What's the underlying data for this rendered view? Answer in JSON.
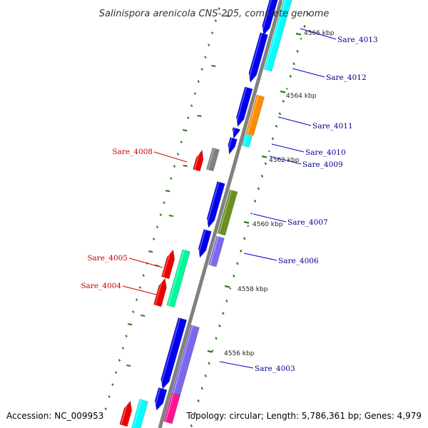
{
  "title": "Salinispora arenicola CNS-205, complete genome",
  "accession": "Accession: NC_009953",
  "topology": "Topology: circular; Length: 5,786,361 bp; Genes: 4,979",
  "colors": {
    "backbone": "#808080",
    "tick": "#2e7d1f",
    "label_plus": "#00008b",
    "label_minus": "#cc0000",
    "leader_plus": "#0000cc",
    "leader_minus": "#cc0000"
  },
  "kbp_labels": [
    "4566 kbp",
    "4564 kbp",
    "4562 kbp",
    "4560 kbp",
    "4558 kbp",
    "4556 kbp"
  ],
  "gene_labels": [
    {
      "text": "Sare_4013",
      "strand": "plus"
    },
    {
      "text": "Sare_4012",
      "strand": "plus"
    },
    {
      "text": "Sare_4011",
      "strand": "plus"
    },
    {
      "text": "Sare_4010",
      "strand": "plus"
    },
    {
      "text": "Sare_4009",
      "strand": "plus"
    },
    {
      "text": "Sare_4008",
      "strand": "minus"
    },
    {
      "text": "Sare_4007",
      "strand": "plus"
    },
    {
      "text": "Sare_4006",
      "strand": "plus"
    },
    {
      "text": "Sare_4005",
      "strand": "minus"
    },
    {
      "text": "Sare_4004",
      "strand": "minus"
    },
    {
      "text": "Sare_4003",
      "strand": "plus"
    }
  ],
  "features": [
    {
      "name": "plus-cds",
      "color": "#0000ee"
    },
    {
      "name": "minus-cds",
      "color": "#ee0000"
    },
    {
      "name": "cog-cyan",
      "color": "#00ffff"
    },
    {
      "name": "cog-orange",
      "color": "#ff8c00"
    },
    {
      "name": "cog-olive",
      "color": "#6b8e23"
    },
    {
      "name": "cog-slate",
      "color": "#7b68ee"
    },
    {
      "name": "cog-springgreen",
      "color": "#00fa9a"
    },
    {
      "name": "cog-gray",
      "color": "#808080"
    },
    {
      "name": "cog-magenta",
      "color": "#ff1493"
    }
  ]
}
